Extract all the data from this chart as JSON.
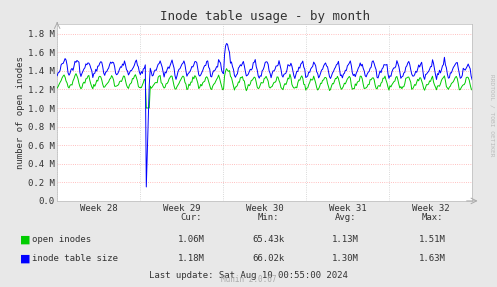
{
  "title": "Inode table usage - by month",
  "ylabel": "number of open inodes",
  "bg_color": "#e8e8e8",
  "plot_bg_color": "#ffffff",
  "ylim": [
    0,
    1900000
  ],
  "yticks": [
    0,
    200000,
    400000,
    600000,
    800000,
    1000000,
    1200000,
    1400000,
    1600000,
    1800000
  ],
  "ytick_labels": [
    "0.0",
    "0.2 M",
    "0.4 M",
    "0.6 M",
    "0.8 M",
    "1.0 M",
    "1.2 M",
    "1.4 M",
    "1.6 M",
    "1.8 M"
  ],
  "week_labels": [
    "Week 28",
    "Week 29",
    "Week 30",
    "Week 31",
    "Week 32"
  ],
  "week_tick_pos": [
    3.5,
    10.5,
    17.5,
    24.5,
    31.5
  ],
  "legend": [
    {
      "label": "open inodes",
      "color": "#00cc00"
    },
    {
      "label": "inode table size",
      "color": "#0000ff"
    }
  ],
  "cur1": "1.06M",
  "min1": "65.43k",
  "avg1": "1.13M",
  "max1": "1.51M",
  "cur2": "1.18M",
  "min2": "66.02k",
  "avg2": "1.30M",
  "max2": "1.63M",
  "last_update": "Last update: Sat Aug 10 00:55:00 2024",
  "rrdtool_label": "RRDTOOL / TOBI OETIKER",
  "munin_label": "Munin 2.0.67",
  "line1_color": "#00cc00",
  "line2_color": "#0000ff",
  "grid_h_color": "#ffaaaa",
  "grid_v_color": "#cccccc"
}
